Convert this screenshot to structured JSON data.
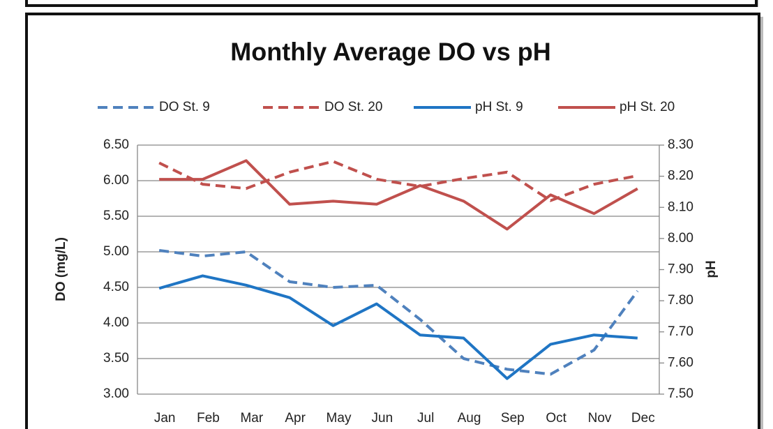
{
  "chart_data": {
    "type": "line",
    "title": "Monthly Average DO vs pH",
    "y_label": "DO (mg/L)",
    "y2_label": "pH",
    "categories": [
      "Jan",
      "Feb",
      "Mar",
      "Apr",
      "May",
      "Jun",
      "Jul",
      "Aug",
      "Sep",
      "Oct",
      "Nov",
      "Dec"
    ],
    "series": [
      {
        "name": "DO St. 9",
        "color": "#4f81bd",
        "dash": true,
        "axis": "y",
        "values": [
          5.02,
          4.94,
          5.0,
          4.58,
          4.5,
          4.53,
          4.05,
          3.5,
          3.35,
          3.28,
          3.62,
          4.45
        ]
      },
      {
        "name": "DO St. 20",
        "color": "#c0504d",
        "dash": true,
        "axis": "y",
        "values": [
          6.25,
          5.95,
          5.89,
          6.12,
          6.27,
          6.02,
          5.92,
          6.03,
          6.12,
          5.72,
          5.95,
          6.07
        ]
      },
      {
        "name": "pH St. 9",
        "color": "#1f75c4",
        "dash": false,
        "axis": "y2",
        "values": [
          7.84,
          7.88,
          7.85,
          7.81,
          7.72,
          7.79,
          7.69,
          7.68,
          7.55,
          7.66,
          7.69,
          7.68
        ]
      },
      {
        "name": "pH St. 20",
        "color": "#c0504d",
        "dash": false,
        "axis": "y2",
        "values": [
          8.19,
          8.19,
          8.25,
          8.11,
          8.12,
          8.11,
          8.17,
          8.12,
          8.03,
          8.14,
          8.08,
          8.16
        ]
      }
    ],
    "ylim": [
      3.0,
      6.5
    ],
    "yticks": [
      {
        "value": 3.0,
        "label": "3.00"
      },
      {
        "value": 3.5,
        "label": "3.50"
      },
      {
        "value": 4.0,
        "label": "4.00"
      },
      {
        "value": 4.5,
        "label": "4.50"
      },
      {
        "value": 5.0,
        "label": "5.00"
      },
      {
        "value": 5.5,
        "label": "5.50"
      },
      {
        "value": 6.0,
        "label": "6.00"
      },
      {
        "value": 6.5,
        "label": "6.50"
      }
    ],
    "y2lim": [
      7.5,
      8.3
    ],
    "y2ticks": [
      {
        "value": 7.5,
        "label": "7.50"
      },
      {
        "value": 7.6,
        "label": "7.60"
      },
      {
        "value": 7.7,
        "label": "7.70"
      },
      {
        "value": 7.8,
        "label": "7.80"
      },
      {
        "value": 7.9,
        "label": "7.90"
      },
      {
        "value": 8.0,
        "label": "8.00"
      },
      {
        "value": 8.1,
        "label": "8.10"
      },
      {
        "value": 8.2,
        "label": "8.20"
      },
      {
        "value": 8.3,
        "label": "8.30"
      }
    ],
    "grid": true,
    "legend": "top"
  }
}
